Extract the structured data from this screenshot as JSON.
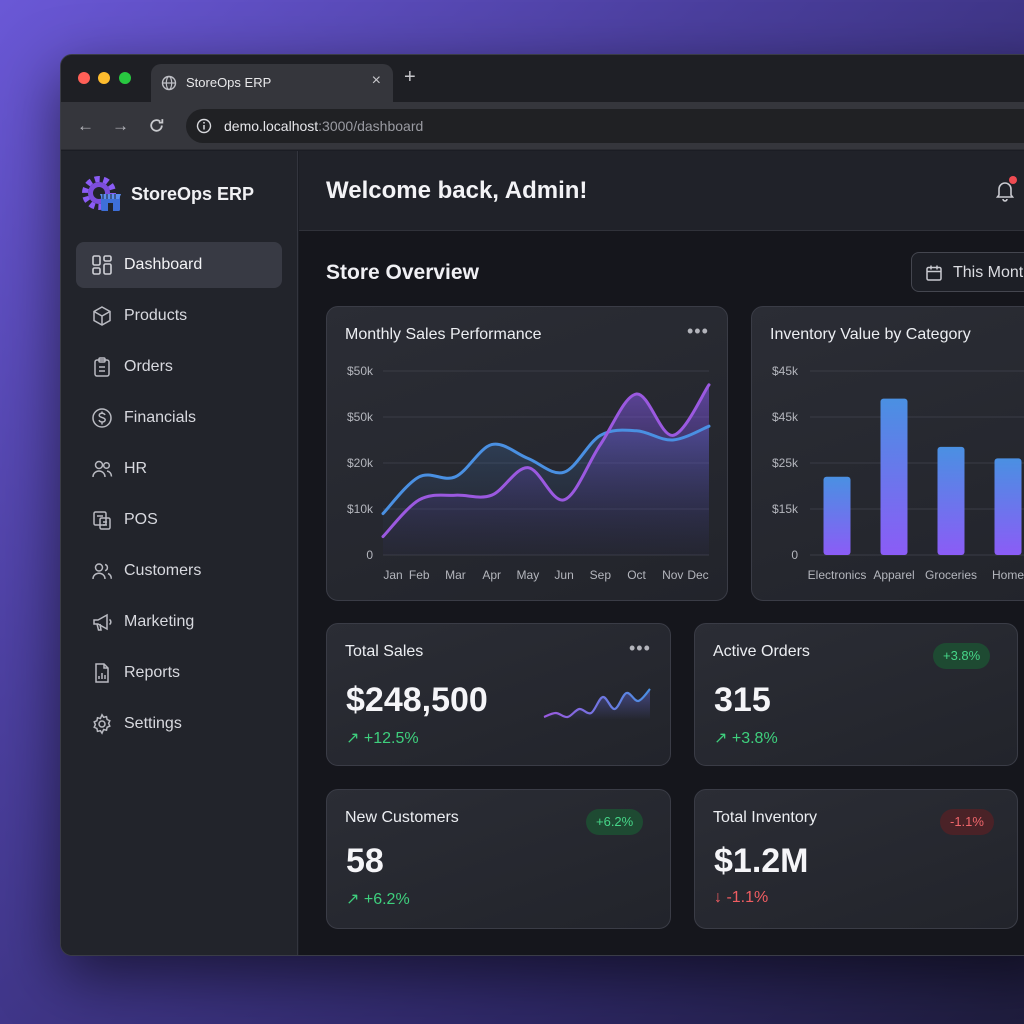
{
  "browser": {
    "tab_title": "StoreOps ERP",
    "tab_close": "×",
    "new_tab": "+",
    "url_host": "demo.localhost",
    "url_path": ":3000/dashboard"
  },
  "sidebar": {
    "brand": "StoreOps ERP",
    "items": [
      {
        "label": "Dashboard",
        "icon": "dashboard-icon",
        "active": true
      },
      {
        "label": "Products",
        "icon": "box-icon"
      },
      {
        "label": "Orders",
        "icon": "clipboard-icon"
      },
      {
        "label": "Financials",
        "icon": "dollar-circle-icon"
      },
      {
        "label": "HR",
        "icon": "users-icon"
      },
      {
        "label": "POS",
        "icon": "pos-terminal-icon"
      },
      {
        "label": "Customers",
        "icon": "customers-icon"
      },
      {
        "label": "Marketing",
        "icon": "megaphone-icon"
      },
      {
        "label": "Reports",
        "icon": "report-icon"
      },
      {
        "label": "Settings",
        "icon": "gear-icon"
      }
    ]
  },
  "header": {
    "welcome": "Welcome back, Admin!"
  },
  "overview": {
    "title": "Store Overview",
    "date_range": "This Month"
  },
  "colors": {
    "accent": "#8b5cf6",
    "blue": "#4a90e2",
    "positive": "#3ecf7d",
    "negative": "#f05d62"
  },
  "chart_data": [
    {
      "type": "area",
      "title": "Monthly Sales Performance",
      "categories": [
        "Jan",
        "Feb",
        "Mar",
        "Apr",
        "May",
        "Jun",
        "Sep",
        "Oct",
        "Nov",
        "Dec"
      ],
      "y_tick_labels": [
        "0",
        "$10k",
        "$20k",
        "$50k",
        "$50k"
      ],
      "ylim": [
        0,
        40
      ],
      "grid": true,
      "series": [
        {
          "color": "#4a90e2",
          "values": [
            9,
            17,
            17,
            24,
            21,
            18,
            26,
            27,
            25,
            28
          ]
        },
        {
          "color": "#9b59e0",
          "values": [
            4,
            12,
            13,
            13,
            19,
            12,
            24,
            35,
            26,
            37
          ]
        }
      ]
    },
    {
      "type": "bar",
      "title": "Inventory Value by Category",
      "categories": [
        "Electronics",
        "Apparel",
        "Groceries",
        "Home"
      ],
      "y_tick_labels": [
        "0",
        "$15k",
        "$25k",
        "$45k",
        "$45k"
      ],
      "ylim": [
        0,
        40
      ],
      "grid": true,
      "values": [
        17,
        34,
        23.5,
        21
      ]
    }
  ],
  "stats": {
    "total_sales": {
      "title": "Total Sales",
      "value": "$248,500",
      "change": "+12.5%",
      "sparkline": [
        3,
        4,
        3,
        5,
        4,
        8,
        5,
        9,
        7,
        10
      ]
    },
    "active_orders": {
      "title": "Active Orders",
      "value": "315",
      "change": "+3.8%",
      "badge": "+3.8%"
    },
    "new_customers": {
      "title": "New Customers",
      "value": "58",
      "change": "+6.2%",
      "badge": "+6.2%"
    },
    "total_inventory": {
      "title": "Total Inventory",
      "value": "$1.2M",
      "change": "-1.1%",
      "badge": "-1.1%"
    }
  },
  "more_glyph": "•••"
}
